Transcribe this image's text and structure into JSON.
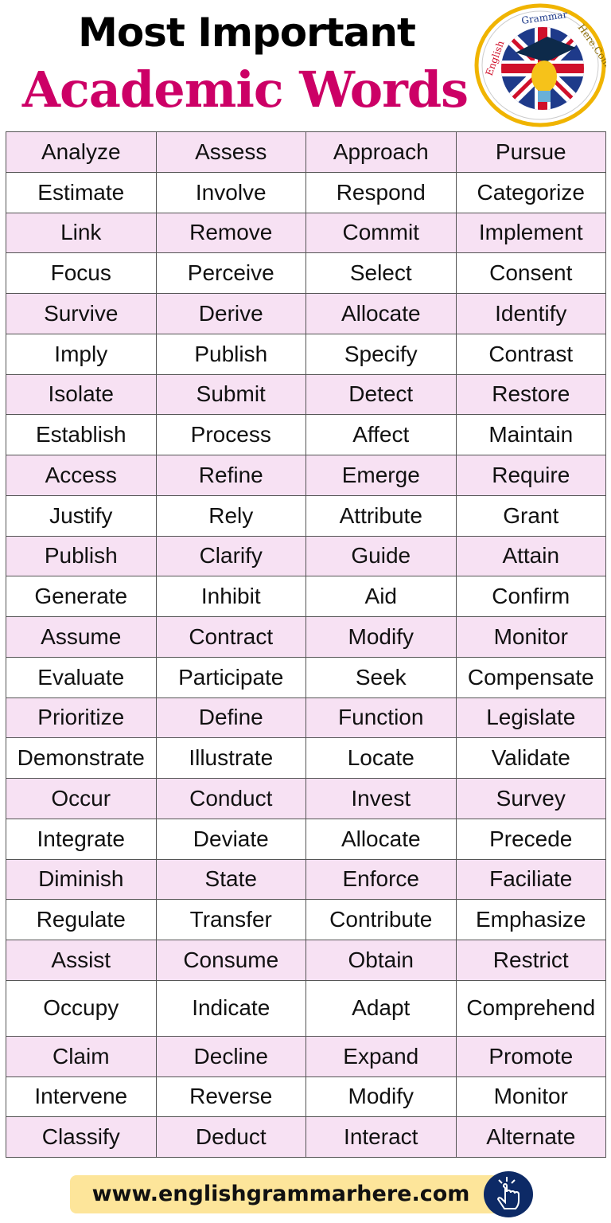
{
  "header": {
    "title_line1": "Most Important",
    "title_line2": "Academic Words",
    "title_color": "#cc0066"
  },
  "logo": {
    "text": "English Grammar Here.Com"
  },
  "table": {
    "row_colors": [
      "#f7e1f3",
      "#ffffff"
    ],
    "rows": [
      [
        "Analyze",
        "Assess",
        "Approach",
        "Pursue"
      ],
      [
        "Estimate",
        "Involve",
        "Respond",
        "Categorize"
      ],
      [
        "Link",
        "Remove",
        "Commit",
        "Implement"
      ],
      [
        "Focus",
        "Perceive",
        "Select",
        "Consent"
      ],
      [
        "Survive",
        "Derive",
        "Allocate",
        "Identify"
      ],
      [
        "Imply",
        "Publish",
        "Specify",
        "Contrast"
      ],
      [
        "Isolate",
        "Submit",
        "Detect",
        "Restore"
      ],
      [
        "Establish",
        "Process",
        "Affect",
        "Maintain"
      ],
      [
        "Access",
        "Refine",
        "Emerge",
        "Require"
      ],
      [
        "Justify",
        "Rely",
        "Attribute",
        "Grant"
      ],
      [
        "Publish",
        "Clarify",
        "Guide",
        "Attain"
      ],
      [
        "Generate",
        "Inhibit",
        "Aid",
        "Confirm"
      ],
      [
        "Assume",
        "Contract",
        "Modify",
        "Monitor"
      ],
      [
        "Evaluate",
        "Participate",
        "Seek",
        "Compensate"
      ],
      [
        "Prioritize",
        "Define",
        "Function",
        "Legislate"
      ],
      [
        "Demonstrate",
        "Illustrate",
        "Locate",
        "Validate"
      ],
      [
        "Occur",
        "Conduct",
        "Invest",
        "Survey"
      ],
      [
        "Integrate",
        "Deviate",
        "Allocate",
        "Precede"
      ],
      [
        "Diminish",
        "State",
        "Enforce",
        "Faciliate"
      ],
      [
        "Regulate",
        "Transfer",
        "Contribute",
        "Emphasize"
      ],
      [
        "Assist",
        "Consume",
        "Obtain",
        "Restrict"
      ],
      [
        "Occupy",
        "Indicate",
        "Adapt",
        "Comprehend"
      ],
      [
        "Claim",
        "Decline",
        "Expand",
        "Promote"
      ],
      [
        "Intervene",
        "Reverse",
        "Modify",
        "Monitor"
      ],
      [
        "Classify",
        "Deduct",
        "Interact",
        "Alternate"
      ]
    ]
  },
  "footer": {
    "url": "www.englishgrammarhere.com",
    "icon": "pointing-hand-icon"
  }
}
